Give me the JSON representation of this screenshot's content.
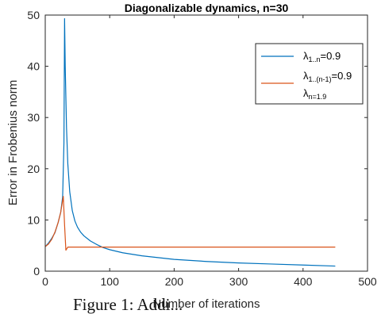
{
  "chart_data": {
    "type": "line",
    "title": "Diagonalizable dynamics, n=30",
    "xlabel": "Number of iterations",
    "ylabel": "Error in Frobenius norm",
    "xlim": [
      0,
      500
    ],
    "ylim": [
      0,
      50
    ],
    "xticks": [
      0,
      100,
      200,
      300,
      400,
      500
    ],
    "yticks": [
      0,
      10,
      20,
      30,
      40,
      50
    ],
    "legend_position": "top-right",
    "series": [
      {
        "name": "λ1..n=0.9",
        "color": "#0072BD",
        "x": [
          0,
          5,
          10,
          15,
          20,
          24,
          27,
          29,
          30,
          31,
          33,
          35,
          38,
          42,
          46,
          50,
          55,
          60,
          70,
          80,
          90,
          100,
          120,
          150,
          200,
          250,
          300,
          350,
          400,
          450
        ],
        "y": [
          4.8,
          5.5,
          6.4,
          7.5,
          9.5,
          11.5,
          14.5,
          25,
          49.3,
          40,
          28,
          21,
          15.5,
          11.8,
          9.8,
          8.6,
          7.6,
          6.9,
          5.9,
          5.2,
          4.6,
          4.2,
          3.6,
          3.0,
          2.3,
          1.9,
          1.6,
          1.4,
          1.2,
          1.0
        ]
      },
      {
        "name": "λ1..(n-1)=0.9 λn=1.9",
        "color": "#D95319",
        "x": [
          0,
          5,
          10,
          15,
          20,
          24,
          28,
          30,
          32,
          35,
          40,
          100,
          200,
          300,
          400,
          450
        ],
        "y": [
          4.8,
          5.3,
          6.2,
          7.6,
          9.5,
          11.5,
          14.6,
          9,
          4.1,
          4.7,
          4.7,
          4.7,
          4.7,
          4.7,
          4.7,
          4.7
        ]
      }
    ],
    "legend": {
      "entries": [
        {
          "base": "λ",
          "sub": "1..n",
          "rest": "=0.9"
        },
        {
          "base": "λ",
          "sub": "1..(n-1)",
          "rest": "=0.9",
          "base2": "λ",
          "sub2": "n=1.9"
        }
      ]
    }
  },
  "caption": "Figure 1: Addi..."
}
